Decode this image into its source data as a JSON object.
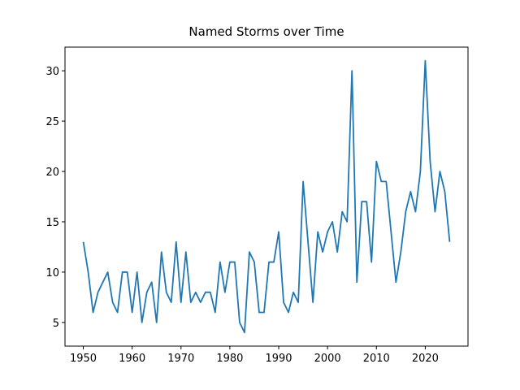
{
  "chart_data": {
    "type": "line",
    "title": "Named Storms over Time",
    "x": [
      1950,
      1951,
      1952,
      1953,
      1954,
      1955,
      1956,
      1957,
      1958,
      1959,
      1960,
      1961,
      1962,
      1963,
      1964,
      1965,
      1966,
      1967,
      1968,
      1969,
      1970,
      1971,
      1972,
      1973,
      1974,
      1975,
      1976,
      1977,
      1978,
      1979,
      1980,
      1981,
      1982,
      1983,
      1984,
      1985,
      1986,
      1987,
      1988,
      1989,
      1990,
      1991,
      1992,
      1993,
      1994,
      1995,
      1996,
      1997,
      1998,
      1999,
      2000,
      2001,
      2002,
      2003,
      2004,
      2005,
      2006,
      2007,
      2008,
      2009,
      2010,
      2011,
      2012,
      2013,
      2014,
      2015,
      2016,
      2017,
      2018,
      2019,
      2020,
      2021,
      2022,
      2023,
      2024,
      2025
    ],
    "values": [
      13,
      10,
      6,
      8,
      9,
      10,
      7,
      6,
      10,
      10,
      6,
      10,
      5,
      8,
      9,
      5,
      12,
      8,
      7,
      13,
      7,
      12,
      7,
      8,
      7,
      8,
      8,
      6,
      11,
      8,
      11,
      11,
      5,
      4,
      12,
      11,
      6,
      6,
      11,
      11,
      14,
      7,
      6,
      8,
      7,
      19,
      13,
      7,
      14,
      12,
      14,
      15,
      12,
      16,
      15,
      30,
      9,
      17,
      17,
      11,
      21,
      19,
      19,
      14,
      9,
      12,
      16,
      18,
      16,
      20,
      31,
      21,
      16,
      20,
      18,
      13
    ],
    "color": "#1f77b4",
    "xlim": [
      1946.25,
      2028.75
    ],
    "xticks": [
      1950,
      1960,
      1970,
      1980,
      1990,
      2000,
      2010,
      2020
    ],
    "ylim": [
      2.65,
      32.35
    ],
    "yticks": [
      5,
      10,
      15,
      20,
      25,
      30
    ]
  }
}
